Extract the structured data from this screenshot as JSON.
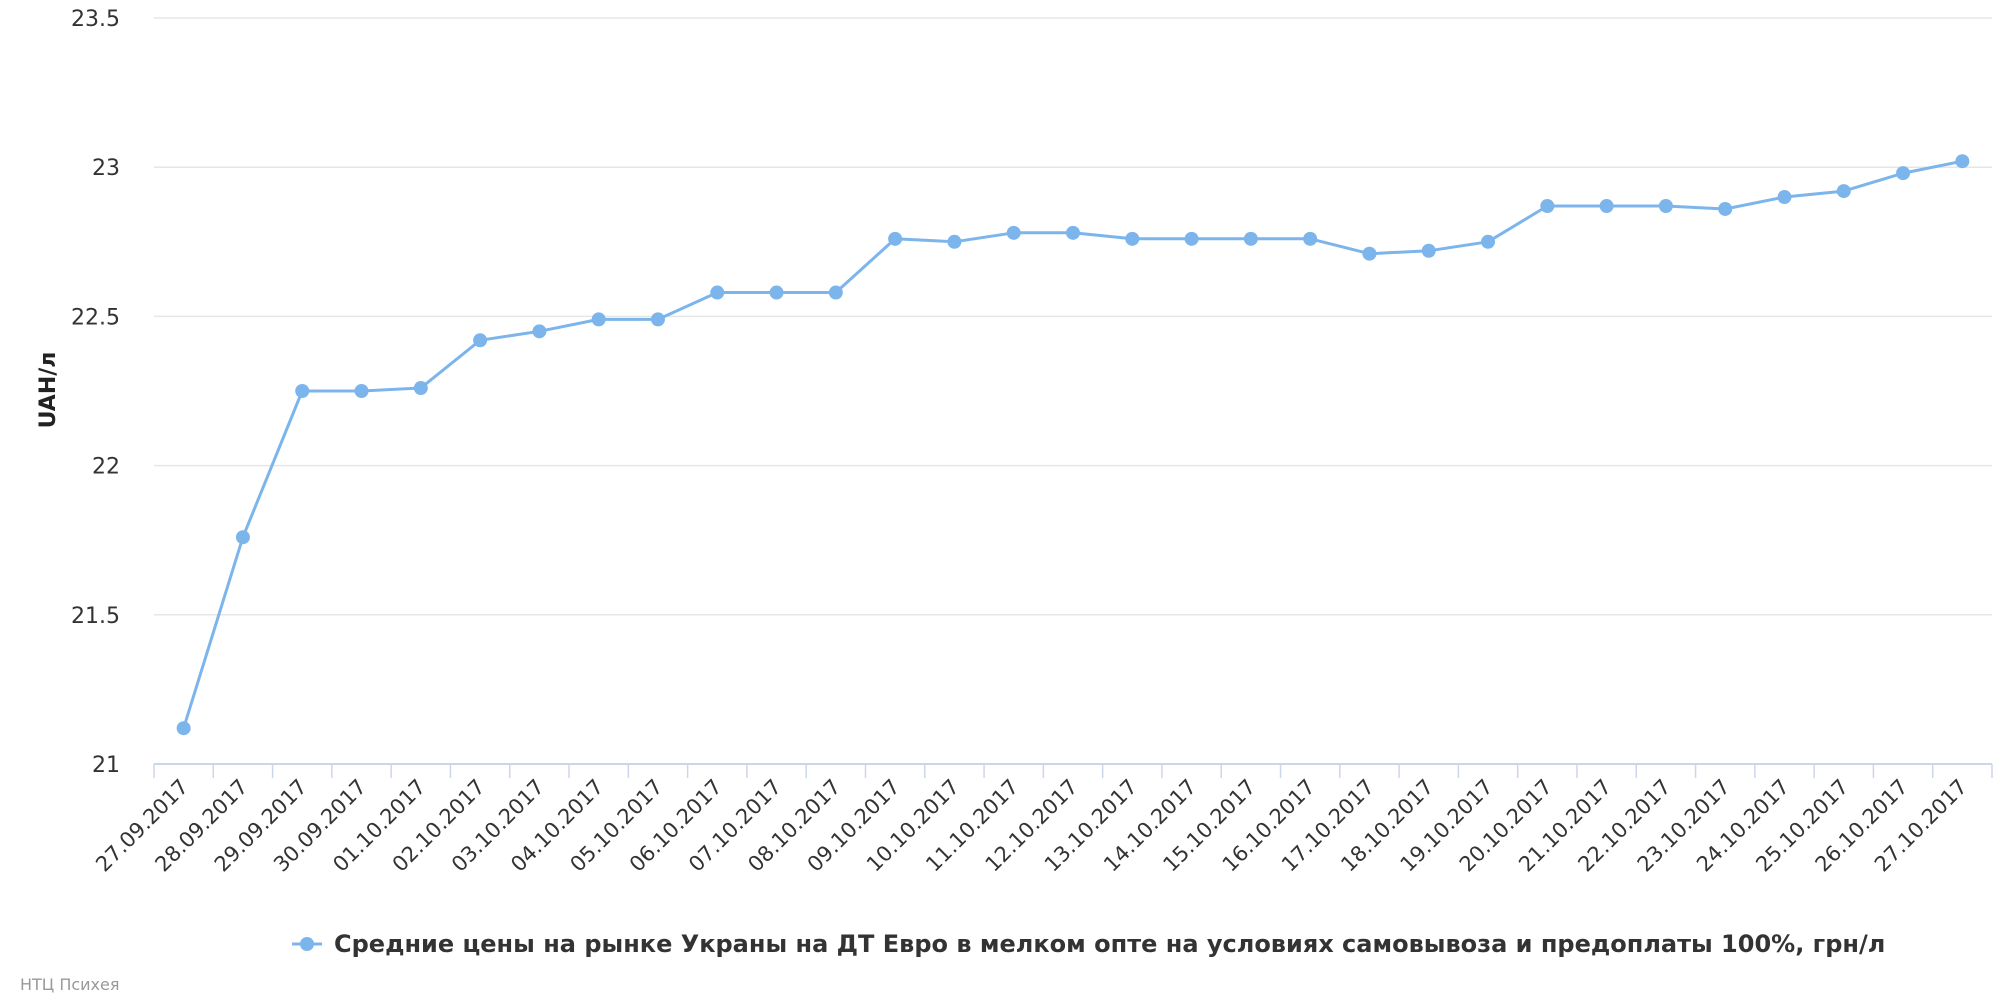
{
  "chart_data": {
    "type": "line",
    "title": "",
    "xlabel": "",
    "ylabel": "UAH/л",
    "ylim": [
      21,
      23.5
    ],
    "yticks": [
      21,
      21.5,
      22,
      22.5,
      23,
      23.5
    ],
    "ytick_labels": [
      "21",
      "21.5",
      "22",
      "22.5",
      "23",
      "23.5"
    ],
    "grid": true,
    "legend_position": "bottom",
    "categories": [
      "27.09.2017",
      "28.09.2017",
      "29.09.2017",
      "30.09.2017",
      "01.10.2017",
      "02.10.2017",
      "03.10.2017",
      "04.10.2017",
      "05.10.2017",
      "06.10.2017",
      "07.10.2017",
      "08.10.2017",
      "09.10.2017",
      "10.10.2017",
      "11.10.2017",
      "12.10.2017",
      "13.10.2017",
      "14.10.2017",
      "15.10.2017",
      "16.10.2017",
      "17.10.2017",
      "18.10.2017",
      "19.10.2017",
      "20.10.2017",
      "21.10.2017",
      "22.10.2017",
      "23.10.2017",
      "24.10.2017",
      "25.10.2017",
      "26.10.2017",
      "27.10.2017"
    ],
    "series": [
      {
        "name": "Средние цены на рынке Украны на ДТ Евро в мелком опте на условиях самовывоза и предоплаты 100%, грн/л",
        "color": "#7cb5ec",
        "values": [
          21.12,
          21.76,
          22.25,
          22.25,
          22.26,
          22.42,
          22.45,
          22.49,
          22.49,
          22.58,
          22.58,
          22.58,
          22.76,
          22.75,
          22.78,
          22.78,
          22.76,
          22.76,
          22.76,
          22.76,
          22.71,
          22.72,
          22.75,
          22.87,
          22.87,
          22.87,
          22.86,
          22.9,
          22.92,
          22.98,
          23.02
        ]
      }
    ]
  },
  "credit": "НТЦ Психея"
}
